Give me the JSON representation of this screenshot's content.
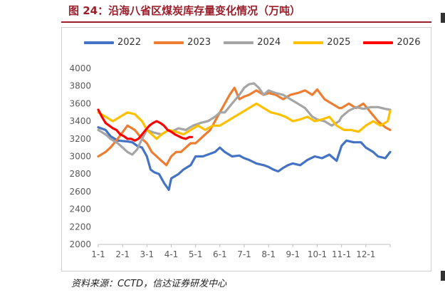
{
  "figure": {
    "title": "图 24：沿海八省区煤炭库存量变化情况（万吨）",
    "source": "资料来源：CCTD，信达证券研发中心"
  },
  "chart_data": {
    "type": "line",
    "categories": [
      "1-1",
      "2-1",
      "3-1",
      "4-1",
      "5-1",
      "6-1",
      "7-1",
      "8-1",
      "9-1",
      "10-1",
      "11-1",
      "12-1"
    ],
    "ylim": [
      2000,
      4000
    ],
    "yticks": [
      2000,
      2200,
      2400,
      2600,
      2800,
      3000,
      3200,
      3400,
      3600,
      3800,
      4000
    ],
    "grid": false,
    "legend_position": "top",
    "series": [
      {
        "name": "2022",
        "color": "#4472c4",
        "x": [
          0,
          0.3,
          0.5,
          0.8,
          1.2,
          1.4,
          1.6,
          1.8,
          2,
          2.15,
          2.3,
          2.5,
          2.7,
          2.9,
          3,
          3.3,
          3.5,
          3.8,
          4,
          4.3,
          4.5,
          4.8,
          5,
          5.2,
          5.5,
          5.8,
          6,
          6.2,
          6.5,
          6.8,
          7,
          7.2,
          7.4,
          7.6,
          7.8,
          8,
          8.3,
          8.6,
          8.9,
          9.2,
          9.5,
          9.8,
          10,
          10.2,
          10.5,
          10.8,
          11,
          11.3,
          11.5,
          11.8,
          12
        ],
        "y": [
          3330,
          3300,
          3230,
          3180,
          3170,
          3160,
          3120,
          3100,
          3000,
          2850,
          2820,
          2800,
          2700,
          2620,
          2750,
          2800,
          2850,
          2900,
          3000,
          3000,
          3020,
          3050,
          3100,
          3050,
          3000,
          3010,
          2980,
          2960,
          2920,
          2900,
          2880,
          2850,
          2830,
          2870,
          2900,
          2920,
          2900,
          2960,
          3000,
          2980,
          3020,
          2950,
          3120,
          3180,
          3160,
          3160,
          3100,
          3050,
          3000,
          2980,
          3050
        ]
      },
      {
        "name": "2023",
        "color": "#ed7d31",
        "x": [
          0,
          0.3,
          0.5,
          0.8,
          1.2,
          1.5,
          1.8,
          2,
          2.2,
          2.4,
          2.6,
          2.8,
          3,
          3.2,
          3.4,
          3.6,
          3.8,
          4,
          4.2,
          4.4,
          4.6,
          4.8,
          5,
          5.2,
          5.4,
          5.6,
          5.8,
          6,
          6.2,
          6.5,
          6.8,
          7,
          7.3,
          7.6,
          7.9,
          8.2,
          8.5,
          8.8,
          9,
          9.3,
          9.6,
          9.9,
          10,
          10.3,
          10.6,
          10.9,
          11.2,
          11.5,
          11.8,
          12
        ],
        "y": [
          3000,
          3050,
          3100,
          3200,
          3350,
          3300,
          3200,
          3150,
          3050,
          3000,
          2950,
          2900,
          3000,
          3050,
          3050,
          3100,
          3150,
          3150,
          3200,
          3250,
          3300,
          3400,
          3500,
          3600,
          3700,
          3780,
          3650,
          3680,
          3700,
          3750,
          3700,
          3720,
          3700,
          3650,
          3700,
          3720,
          3750,
          3700,
          3760,
          3650,
          3600,
          3550,
          3550,
          3600,
          3550,
          3600,
          3500,
          3400,
          3330,
          3300
        ]
      },
      {
        "name": "2024",
        "color": "#a5a5a5",
        "x": [
          0,
          0.3,
          0.5,
          0.8,
          1,
          1.2,
          1.4,
          1.6,
          1.8,
          2,
          2.3,
          2.6,
          2.9,
          3,
          3.3,
          3.6,
          3.9,
          4.2,
          4.5,
          4.8,
          5,
          5.2,
          5.5,
          5.8,
          6,
          6.2,
          6.4,
          6.6,
          6.8,
          7,
          7.3,
          7.6,
          7.9,
          8.2,
          8.5,
          8.8,
          9,
          9.3,
          9.6,
          9.9,
          10,
          10.3,
          10.6,
          10.9,
          11.2,
          11.5,
          11.8,
          12
        ],
        "y": [
          3300,
          3250,
          3200,
          3150,
          3100,
          3050,
          3020,
          3080,
          3200,
          3300,
          3270,
          3250,
          3300,
          3280,
          3320,
          3300,
          3350,
          3380,
          3400,
          3450,
          3500,
          3500,
          3600,
          3700,
          3780,
          3820,
          3830,
          3780,
          3700,
          3750,
          3720,
          3700,
          3650,
          3600,
          3550,
          3450,
          3420,
          3400,
          3350,
          3400,
          3450,
          3520,
          3560,
          3540,
          3560,
          3560,
          3540,
          3530
        ]
      },
      {
        "name": "2025",
        "color": "#ffc000",
        "x": [
          0,
          0.3,
          0.6,
          0.9,
          1.2,
          1.5,
          1.8,
          2,
          2.2,
          2.4,
          2.6,
          2.9,
          3.2,
          3.5,
          3.8,
          4.1,
          4.4,
          4.7,
          5,
          5.3,
          5.6,
          5.9,
          6.2,
          6.5,
          6.8,
          7.1,
          7.4,
          7.7,
          8,
          8.3,
          8.6,
          8.9,
          9.2,
          9.5,
          9.8,
          10.1,
          10.4,
          10.7,
          11,
          11.3,
          11.6,
          11.9,
          12
        ],
        "y": [
          3500,
          3450,
          3400,
          3450,
          3500,
          3480,
          3400,
          3300,
          3250,
          3200,
          3250,
          3300,
          3280,
          3250,
          3300,
          3350,
          3300,
          3350,
          3350,
          3400,
          3450,
          3500,
          3550,
          3600,
          3550,
          3500,
          3480,
          3450,
          3400,
          3420,
          3450,
          3400,
          3420,
          3450,
          3350,
          3300,
          3300,
          3280,
          3350,
          3400,
          3350,
          3400,
          3520
        ]
      },
      {
        "name": "2026",
        "color": "#ff0000",
        "x": [
          0,
          0.15,
          0.3,
          0.45,
          0.6,
          0.75,
          0.9,
          1.05,
          1.2,
          1.35,
          1.5,
          1.65,
          1.8,
          1.95,
          2.1,
          2.25,
          2.4,
          2.55,
          2.7,
          2.85,
          3,
          3.15,
          3.3,
          3.45,
          3.6,
          3.75,
          3.85
        ],
        "y": [
          3530,
          3450,
          3380,
          3350,
          3320,
          3300,
          3250,
          3230,
          3200,
          3200,
          3180,
          3200,
          3250,
          3300,
          3350,
          3380,
          3400,
          3380,
          3350,
          3300,
          3280,
          3250,
          3230,
          3210,
          3200,
          3220,
          3220
        ]
      }
    ]
  }
}
